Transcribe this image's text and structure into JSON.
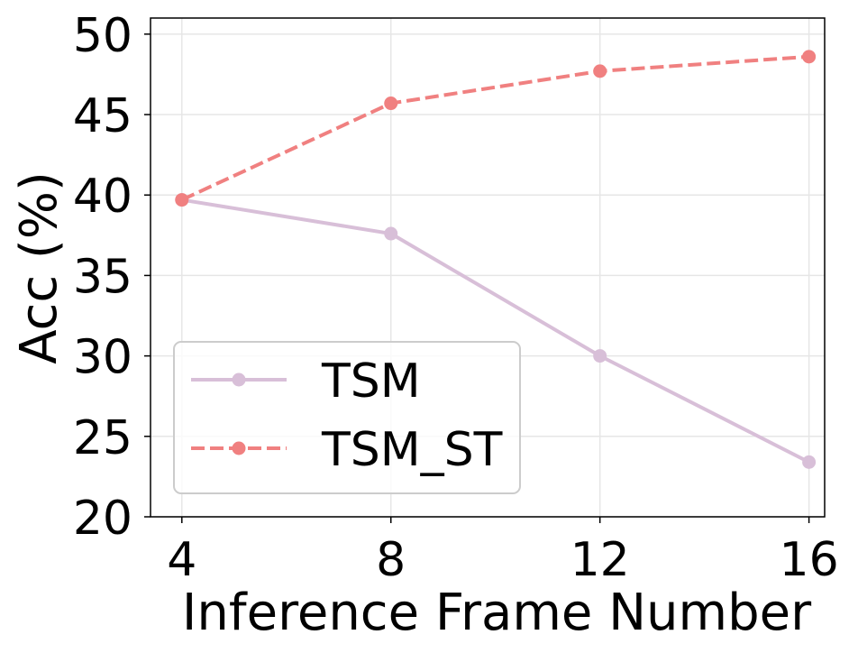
{
  "chart_data": {
    "type": "line",
    "xlabel": "Inference Frame Number",
    "ylabel": "Acc (%)",
    "x": [
      4,
      8,
      12,
      16
    ],
    "x_ticks": [
      "4",
      "8",
      "12",
      "16"
    ],
    "y_ticks": [
      "20",
      "25",
      "30",
      "35",
      "40",
      "45",
      "50"
    ],
    "xlim": [
      3.4,
      16.3
    ],
    "ylim": [
      20,
      51
    ],
    "grid": true,
    "legend": {
      "placement": "lower-left"
    },
    "series": [
      {
        "name": "TSM",
        "values": [
          39.7,
          37.6,
          30.0,
          23.4
        ],
        "color": "#d8bfd8",
        "style": "solid",
        "marker": "circle"
      },
      {
        "name": "TSM_ST",
        "values": [
          39.7,
          45.7,
          47.7,
          48.6
        ],
        "color": "#f08080",
        "style": "dashed",
        "marker": "circle"
      }
    ]
  }
}
